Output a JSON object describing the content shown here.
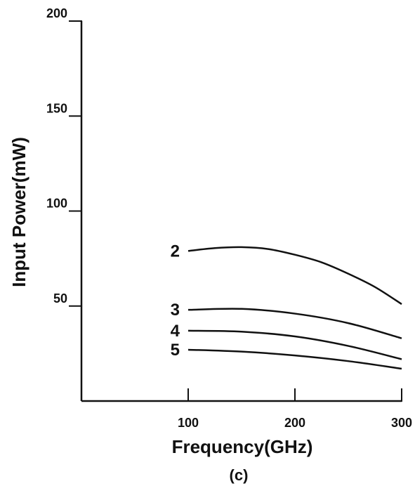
{
  "chart_data": {
    "type": "line",
    "xlabel": "Frequency(GHz)",
    "ylabel": "Input Power(mW)",
    "caption": "(c)",
    "xlim": [
      0,
      300
    ],
    "ylim": [
      0,
      200
    ],
    "x_ticks": [
      100,
      200,
      300
    ],
    "y_ticks": [
      50,
      100,
      150,
      200
    ],
    "x_tick_labels": [
      "100",
      "200",
      "300"
    ],
    "y_tick_labels": [
      "50",
      "100",
      "150",
      "200"
    ],
    "grid": false,
    "series": [
      {
        "name": "2",
        "x": [
          100,
          125,
          150,
          175,
          200,
          225,
          250,
          275,
          300
        ],
        "values": [
          79,
          80.5,
          81,
          80,
          77,
          73,
          67,
          60,
          51
        ]
      },
      {
        "name": "3",
        "x": [
          100,
          150,
          200,
          250,
          300
        ],
        "values": [
          48,
          48.5,
          46,
          41,
          33
        ]
      },
      {
        "name": "4",
        "x": [
          100,
          150,
          200,
          250,
          300
        ],
        "values": [
          37,
          36.5,
          34,
          29,
          22
        ]
      },
      {
        "name": "5",
        "x": [
          100,
          150,
          200,
          250,
          300
        ],
        "values": [
          27,
          26,
          24,
          21,
          17
        ]
      }
    ]
  }
}
